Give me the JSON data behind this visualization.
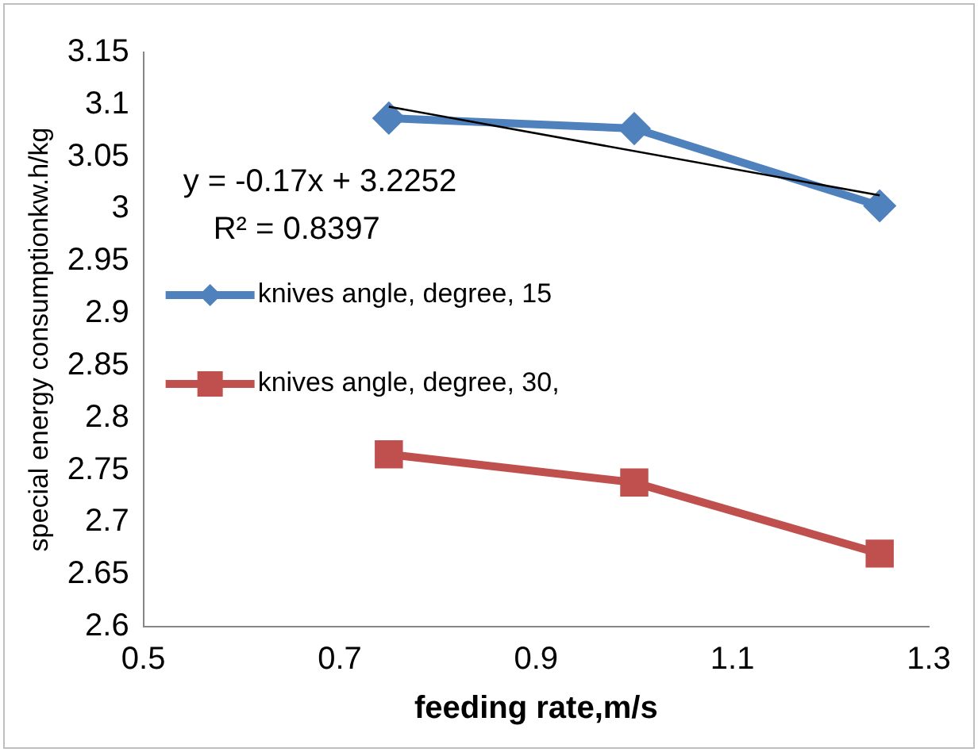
{
  "chart_data": {
    "type": "line",
    "xlabel": "feeding rate,m/s",
    "ylabel": "special energy consumptionkw.h/kg",
    "x": [
      0.75,
      1.0,
      1.25
    ],
    "series": [
      {
        "name": "knives angle, degree, 15",
        "color": "#4f81bd",
        "values": [
          3.087,
          3.077,
          3.003
        ],
        "marker": "diamond"
      },
      {
        "name": "knives angle, degree, 30,",
        "color": "#c0504d",
        "values": [
          2.765,
          2.738,
          2.67
        ],
        "marker": "square"
      },
      {
        "type": "line",
        "x": [
          0.75,
          1.25
        ],
        "color": "#000000",
        "values": [
          3.098,
          3.013
        ],
        "marker": "none"
      }
    ],
    "annotations": [
      "y = -0.17x + 3.2252",
      "R² = 0.8397"
    ],
    "xlim": [
      0.5,
      1.3
    ],
    "xticks": [
      0.5,
      0.7,
      0.9,
      1.1,
      1.3
    ],
    "ylim": [
      2.6,
      3.15
    ],
    "yticks": [
      2.6,
      2.65,
      2.7,
      2.75,
      2.8,
      2.85,
      2.9,
      2.95,
      3,
      3.05,
      3.1,
      3.15
    ],
    "grid": false,
    "legend": "left"
  }
}
